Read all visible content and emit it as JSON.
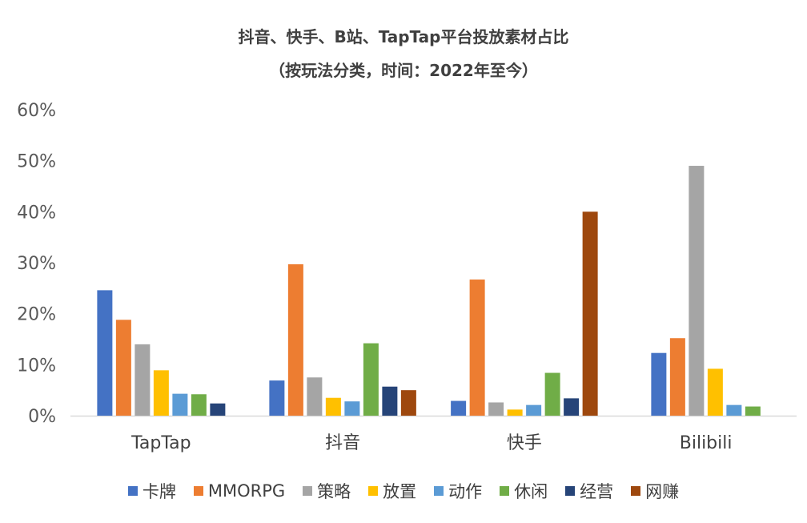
{
  "chart_data": {
    "type": "bar",
    "title": "抖音、快手、B站、TapTap平台投放素材占比",
    "subtitle": "（按玩法分类，时间：2022年至今）",
    "categories": [
      "TapTap",
      "抖音",
      "快手",
      "Bilibili"
    ],
    "ylim": [
      0,
      60
    ],
    "yticks": [
      "0%",
      "10%",
      "20%",
      "30%",
      "40%",
      "50%",
      "60%"
    ],
    "grid": false,
    "legend_position": "bottom",
    "series": [
      {
        "name": "卡牌",
        "color": "#4472C4",
        "values": [
          24.6,
          6.9,
          2.9,
          12.3
        ]
      },
      {
        "name": "MMORPG",
        "color": "#ED7D31",
        "values": [
          18.8,
          29.7,
          26.7,
          15.2
        ]
      },
      {
        "name": "策略",
        "color": "#A5A5A5",
        "values": [
          14.0,
          7.5,
          2.6,
          49.0
        ]
      },
      {
        "name": "放置",
        "color": "#FFC000",
        "values": [
          8.9,
          3.5,
          1.2,
          9.2
        ]
      },
      {
        "name": "动作",
        "color": "#5B9BD5",
        "values": [
          4.3,
          2.8,
          2.1,
          2.1
        ]
      },
      {
        "name": "休闲",
        "color": "#70AD47",
        "values": [
          4.2,
          14.2,
          8.4,
          1.8
        ]
      },
      {
        "name": "经营",
        "color": "#264478",
        "values": [
          2.4,
          5.7,
          3.4,
          null
        ]
      },
      {
        "name": "网赚",
        "color": "#9E480E",
        "values": [
          null,
          5.0,
          40.0,
          null
        ]
      }
    ]
  }
}
